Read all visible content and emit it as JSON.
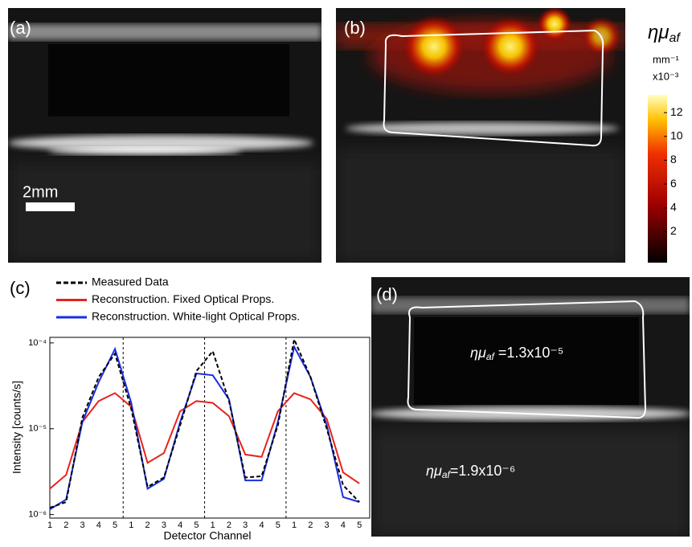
{
  "panels": {
    "a": {
      "label": "(a)",
      "scale_bar": "2mm"
    },
    "b": {
      "label": "(b)",
      "colorbar": {
        "symbol": "ημ",
        "subscript": "af",
        "units": "mm⁻¹",
        "scale": "x10⁻³",
        "lim": [
          -0.6,
          13.5
        ],
        "ticks": [
          2,
          4,
          6,
          8,
          10,
          12
        ]
      }
    },
    "d": {
      "label": "(d)",
      "annotations": [
        {
          "symbol": "ημ",
          "subscript": "af",
          "text": " =1.3x10⁻⁵"
        },
        {
          "symbol": "ημ",
          "subscript": "af",
          "text": "=1.9x10⁻⁶"
        }
      ]
    }
  },
  "chart_data": {
    "type": "line",
    "panel_label": "(c)",
    "xlabel": "Detector Channel",
    "ylabel": "Intensity [counts/s]",
    "categories": [
      "1",
      "2",
      "3",
      "4",
      "5",
      "1",
      "2",
      "3",
      "4",
      "5",
      "1",
      "2",
      "3",
      "4",
      "5",
      "1",
      "2",
      "3",
      "4",
      "5"
    ],
    "series": [
      {
        "name": "Measured Data",
        "color": "#000000",
        "line_style": "dashed",
        "values": [
          1.2e-06,
          1.4e-06,
          1.35e-05,
          4e-05,
          7.5e-05,
          1.7e-05,
          2.1e-06,
          2.7e-06,
          1.1e-05,
          4.7e-05,
          8e-05,
          2.1e-05,
          2.7e-06,
          2.8e-06,
          1.1e-05,
          0.00011,
          4e-05,
          1e-05,
          2.2e-06,
          1.4e-06
        ]
      },
      {
        "name": "Reconstruction.  Fixed Optical Props.",
        "color": "#e8221c",
        "line_style": "solid",
        "values": [
          2e-06,
          2.9e-06,
          1.2e-05,
          2.1e-05,
          2.6e-05,
          1.8e-05,
          4e-06,
          5.2e-06,
          1.6e-05,
          2.1e-05,
          2e-05,
          1.4e-05,
          5e-06,
          4.7e-06,
          1.6e-05,
          2.6e-05,
          2.2e-05,
          1.3e-05,
          3.1e-06,
          2.3e-06
        ]
      },
      {
        "name": "Reconstruction.  White-light Optical Props.",
        "color": "#1a2ee0",
        "line_style": "solid",
        "values": [
          1.15e-06,
          1.5e-06,
          1.2e-05,
          3.5e-05,
          8.5e-05,
          2e-05,
          2e-06,
          2.6e-06,
          1.2e-05,
          4.4e-05,
          4.2e-05,
          2.2e-05,
          2.5e-06,
          2.5e-06,
          1.2e-05,
          9e-05,
          4e-05,
          1.1e-05,
          1.6e-06,
          1.4e-06
        ]
      }
    ],
    "log_scale": true,
    "ylim": [
      9.1e-07,
      0.000116
    ],
    "yticks": [
      {
        "value": 1e-06,
        "label": "10⁻⁶"
      },
      {
        "value": 1e-05,
        "label": "10⁻⁵"
      },
      {
        "value": 0.0001,
        "label": "10⁻⁴"
      }
    ]
  }
}
